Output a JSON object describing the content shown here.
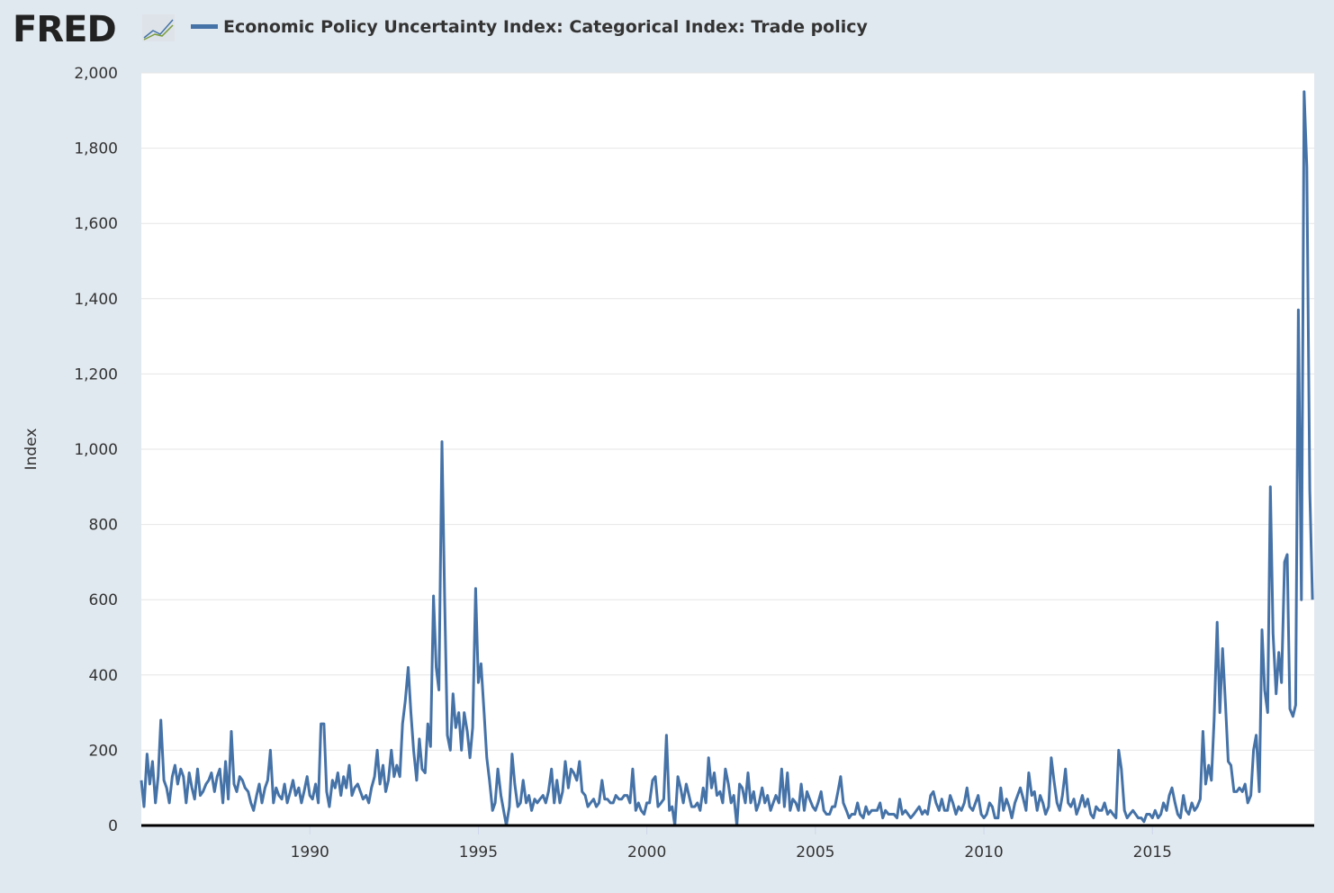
{
  "logo": "FRED",
  "chart_data": {
    "type": "line",
    "y_label": "Index",
    "xlim": [
      1985,
      2019.8
    ],
    "xticks": [
      1990,
      1995,
      2000,
      2005,
      2010,
      2015
    ],
    "ylim": [
      0,
      2000
    ],
    "yticks": [
      0,
      200,
      400,
      600,
      800,
      {
        "value": 1000,
        "label": "1,000"
      },
      {
        "value": 1200,
        "label": "1,200"
      },
      {
        "value": 1400,
        "label": "1,400"
      },
      {
        "value": 1600,
        "label": "1,600"
      },
      {
        "value": 1800,
        "label": "1,800"
      },
      {
        "value": 2000,
        "label": "2,000"
      }
    ],
    "grid": true,
    "x": [
      1985,
      1985.08,
      1985.17,
      1985.25,
      1985.33,
      1985.42,
      1985.5,
      1985.58,
      1985.67,
      1985.75,
      1985.83,
      1985.92,
      1986,
      1986.08,
      1986.17,
      1986.25,
      1986.33,
      1986.42,
      1986.5,
      1986.58,
      1986.67,
      1986.75,
      1986.83,
      1986.92,
      1987,
      1987.08,
      1987.17,
      1987.25,
      1987.33,
      1987.42,
      1987.5,
      1987.58,
      1987.67,
      1987.75,
      1987.83,
      1987.92,
      1988,
      1988.08,
      1988.17,
      1988.25,
      1988.33,
      1988.42,
      1988.5,
      1988.58,
      1988.67,
      1988.75,
      1988.83,
      1988.92,
      1989,
      1989.08,
      1989.17,
      1989.25,
      1989.33,
      1989.42,
      1989.5,
      1989.58,
      1989.67,
      1989.75,
      1989.83,
      1989.92,
      1990,
      1990.08,
      1990.17,
      1990.25,
      1990.33,
      1990.42,
      1990.5,
      1990.58,
      1990.67,
      1990.75,
      1990.83,
      1990.92,
      1991,
      1991.08,
      1991.17,
      1991.25,
      1991.33,
      1991.42,
      1991.5,
      1991.58,
      1991.67,
      1991.75,
      1991.83,
      1991.92,
      1992,
      1992.08,
      1992.17,
      1992.25,
      1992.33,
      1992.42,
      1992.5,
      1992.58,
      1992.67,
      1992.75,
      1992.83,
      1992.92,
      1993,
      1993.08,
      1993.17,
      1993.25,
      1993.33,
      1993.42,
      1993.5,
      1993.58,
      1993.67,
      1993.75,
      1993.83,
      1993.92,
      1994,
      1994.08,
      1994.17,
      1994.25,
      1994.33,
      1994.42,
      1994.5,
      1994.58,
      1994.67,
      1994.75,
      1994.83,
      1994.92,
      1995,
      1995.08,
      1995.17,
      1995.25,
      1995.33,
      1995.42,
      1995.5,
      1995.58,
      1995.67,
      1995.75,
      1995.83,
      1995.92,
      1996,
      1996.08,
      1996.17,
      1996.25,
      1996.33,
      1996.42,
      1996.5,
      1996.58,
      1996.67,
      1996.75,
      1996.83,
      1996.92,
      1997,
      1997.08,
      1997.17,
      1997.25,
      1997.33,
      1997.42,
      1997.5,
      1997.58,
      1997.67,
      1997.75,
      1997.83,
      1997.92,
      1998,
      1998.08,
      1998.17,
      1998.25,
      1998.33,
      1998.42,
      1998.5,
      1998.58,
      1998.67,
      1998.75,
      1998.83,
      1998.92,
      1999,
      1999.08,
      1999.17,
      1999.25,
      1999.33,
      1999.42,
      1999.5,
      1999.58,
      1999.67,
      1999.75,
      1999.83,
      1999.92,
      2000,
      2000.08,
      2000.17,
      2000.25,
      2000.33,
      2000.42,
      2000.5,
      2000.58,
      2000.67,
      2000.75,
      2000.83,
      2000.92,
      2001,
      2001.08,
      2001.17,
      2001.25,
      2001.33,
      2001.42,
      2001.5,
      2001.58,
      2001.67,
      2001.75,
      2001.83,
      2001.92,
      2002,
      2002.08,
      2002.17,
      2002.25,
      2002.33,
      2002.42,
      2002.5,
      2002.58,
      2002.67,
      2002.75,
      2002.83,
      2002.92,
      2003,
      2003.08,
      2003.17,
      2003.25,
      2003.33,
      2003.42,
      2003.5,
      2003.58,
      2003.67,
      2003.75,
      2003.83,
      2003.92,
      2004,
      2004.08,
      2004.17,
      2004.25,
      2004.33,
      2004.42,
      2004.5,
      2004.58,
      2004.67,
      2004.75,
      2004.83,
      2004.92,
      2005,
      2005.08,
      2005.17,
      2005.25,
      2005.33,
      2005.42,
      2005.5,
      2005.58,
      2005.67,
      2005.75,
      2005.83,
      2005.92,
      2006,
      2006.08,
      2006.17,
      2006.25,
      2006.33,
      2006.42,
      2006.5,
      2006.58,
      2006.67,
      2006.75,
      2006.83,
      2006.92,
      2007,
      2007.08,
      2007.17,
      2007.25,
      2007.33,
      2007.42,
      2007.5,
      2007.58,
      2007.67,
      2007.75,
      2007.83,
      2007.92,
      2008,
      2008.08,
      2008.17,
      2008.25,
      2008.33,
      2008.42,
      2008.5,
      2008.58,
      2008.67,
      2008.75,
      2008.83,
      2008.92,
      2009,
      2009.08,
      2009.17,
      2009.25,
      2009.33,
      2009.42,
      2009.5,
      2009.58,
      2009.67,
      2009.75,
      2009.83,
      2009.92,
      2010,
      2010.08,
      2010.17,
      2010.25,
      2010.33,
      2010.42,
      2010.5,
      2010.58,
      2010.67,
      2010.75,
      2010.83,
      2010.92,
      2011,
      2011.08,
      2011.17,
      2011.25,
      2011.33,
      2011.42,
      2011.5,
      2011.58,
      2011.67,
      2011.75,
      2011.83,
      2011.92,
      2012,
      2012.08,
      2012.17,
      2012.25,
      2012.33,
      2012.42,
      2012.5,
      2012.58,
      2012.67,
      2012.75,
      2012.83,
      2012.92,
      2013,
      2013.08,
      2013.17,
      2013.25,
      2013.33,
      2013.42,
      2013.5,
      2013.58,
      2013.67,
      2013.75,
      2013.83,
      2013.92,
      2014,
      2014.08,
      2014.17,
      2014.25,
      2014.33,
      2014.42,
      2014.5,
      2014.58,
      2014.67,
      2014.75,
      2014.83,
      2014.92,
      2015,
      2015.08,
      2015.17,
      2015.25,
      2015.33,
      2015.42,
      2015.5,
      2015.58,
      2015.67,
      2015.75,
      2015.83,
      2015.92,
      2016,
      2016.08,
      2016.17,
      2016.25,
      2016.33,
      2016.42,
      2016.5,
      2016.58,
      2016.67,
      2016.75,
      2016.83,
      2016.92,
      2017,
      2017.08,
      2017.17,
      2017.25,
      2017.33,
      2017.42,
      2017.5,
      2017.58,
      2017.67,
      2017.75,
      2017.83,
      2017.92,
      2018,
      2018.08,
      2018.17,
      2018.25,
      2018.33,
      2018.42,
      2018.5,
      2018.58,
      2018.67,
      2018.75,
      2018.83,
      2018.92,
      2019,
      2019.08,
      2019.17,
      2019.25,
      2019.33,
      2019.42,
      2019.5,
      2019.58,
      2019.67,
      2019.75
    ],
    "series": [
      {
        "name": "Economic Policy Uncertainty Index: Categorical Index: Trade policy",
        "color": "#4572a7",
        "values": [
          120,
          50,
          190,
          110,
          170,
          60,
          130,
          280,
          120,
          100,
          60,
          130,
          160,
          110,
          150,
          130,
          60,
          140,
          100,
          70,
          150,
          80,
          90,
          110,
          120,
          140,
          90,
          130,
          150,
          60,
          170,
          70,
          250,
          110,
          90,
          130,
          120,
          100,
          90,
          60,
          40,
          80,
          110,
          60,
          100,
          120,
          200,
          60,
          100,
          80,
          70,
          110,
          60,
          90,
          120,
          80,
          100,
          60,
          90,
          130,
          80,
          70,
          110,
          60,
          270,
          270,
          90,
          50,
          120,
          100,
          140,
          80,
          130,
          100,
          160,
          80,
          100,
          110,
          90,
          70,
          80,
          60,
          100,
          130,
          200,
          110,
          160,
          90,
          120,
          200,
          130,
          160,
          130,
          270,
          330,
          420,
          300,
          200,
          120,
          230,
          150,
          140,
          270,
          210,
          610,
          420,
          360,
          1020,
          600,
          240,
          200,
          350,
          260,
          300,
          200,
          300,
          250,
          180,
          260,
          630,
          380,
          430,
          300,
          180,
          120,
          40,
          60,
          150,
          80,
          40,
          0,
          50,
          190,
          110,
          50,
          60,
          120,
          60,
          80,
          40,
          70,
          60,
          70,
          80,
          60,
          90,
          150,
          60,
          120,
          60,
          90,
          170,
          100,
          150,
          140,
          120,
          170,
          90,
          80,
          50,
          60,
          70,
          50,
          60,
          120,
          70,
          70,
          60,
          60,
          80,
          70,
          70,
          80,
          80,
          60,
          150,
          40,
          60,
          40,
          30,
          60,
          60,
          120,
          130,
          50,
          60,
          70,
          240,
          40,
          50,
          0,
          130,
          100,
          60,
          110,
          80,
          50,
          50,
          60,
          40,
          100,
          60,
          180,
          100,
          140,
          80,
          90,
          60,
          150,
          110,
          60,
          80,
          0,
          110,
          100,
          60,
          140,
          60,
          90,
          40,
          60,
          100,
          60,
          80,
          40,
          60,
          80,
          60,
          150,
          50,
          140,
          40,
          70,
          60,
          40,
          110,
          40,
          90,
          70,
          50,
          40,
          60,
          90,
          40,
          30,
          30,
          50,
          50,
          90,
          130,
          60,
          40,
          20,
          30,
          30,
          60,
          30,
          20,
          50,
          30,
          40,
          40,
          40,
          60,
          20,
          40,
          30,
          30,
          30,
          20,
          70,
          30,
          40,
          30,
          20,
          30,
          40,
          50,
          30,
          40,
          30,
          80,
          90,
          60,
          40,
          70,
          40,
          40,
          80,
          60,
          30,
          50,
          40,
          60,
          100,
          50,
          40,
          60,
          80,
          30,
          20,
          30,
          60,
          50,
          20,
          20,
          100,
          40,
          70,
          50,
          20,
          60,
          80,
          100,
          70,
          40,
          140,
          80,
          90,
          40,
          80,
          60,
          30,
          50,
          180,
          120,
          60,
          40,
          80,
          150,
          60,
          50,
          70,
          30,
          50,
          80,
          50,
          70,
          30,
          20,
          50,
          40,
          40,
          60,
          30,
          40,
          30,
          20,
          200,
          150,
          40,
          20,
          30,
          40,
          30,
          20,
          20,
          10,
          30,
          30,
          20,
          40,
          20,
          30,
          60,
          40,
          80,
          100,
          60,
          30,
          20,
          80,
          40,
          30,
          60,
          40,
          50,
          70,
          250,
          110,
          160,
          120,
          280,
          540,
          300,
          470,
          320,
          170,
          160,
          90,
          90,
          100,
          90,
          110,
          60,
          80,
          200,
          240,
          90,
          520,
          360,
          300,
          900,
          510,
          350,
          460,
          380,
          700,
          720,
          310,
          290,
          320,
          1370,
          600,
          1950,
          1750,
          890,
          600
        ]
      }
    ]
  }
}
